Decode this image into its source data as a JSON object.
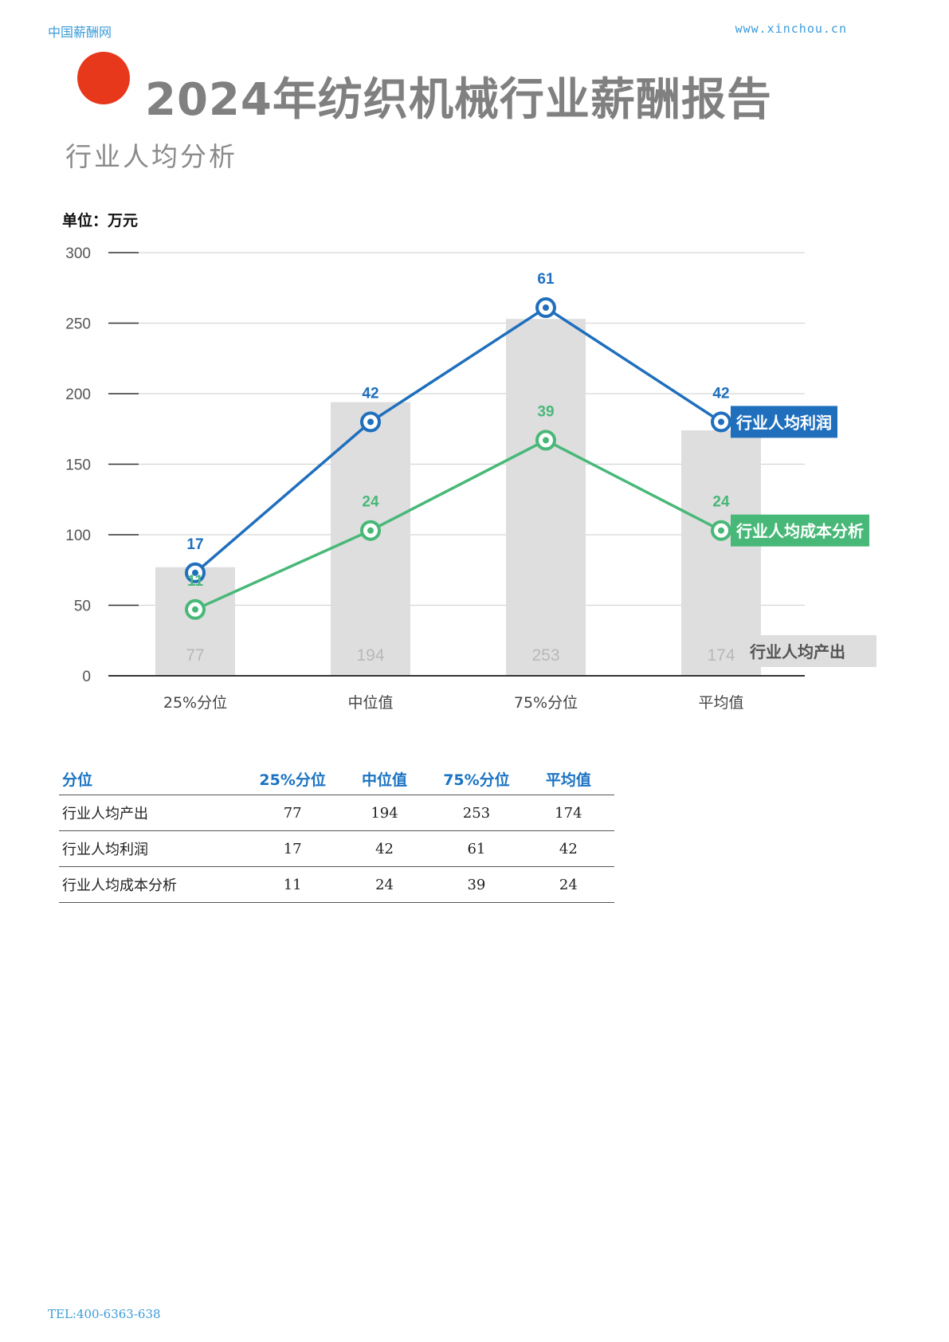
{
  "header": {
    "left": "中国薪酬网",
    "right": "www.xinchou.cn"
  },
  "title": "2024年纺织机械行业薪酬报告",
  "subtitle": "行业人均分析",
  "unit": "单位：万元",
  "colors": {
    "accent_dot": "#e8381b",
    "profit": "#1f6fbd",
    "cost": "#48b878",
    "output_bar": "#dedede"
  },
  "chart_data": {
    "type": "bar",
    "categories": [
      "25%分位",
      "中位值",
      "75%分位",
      "平均值"
    ],
    "ylim": [
      0,
      300
    ],
    "yticks": [
      0,
      50,
      100,
      150,
      200,
      250,
      300
    ],
    "grid": true,
    "bars": {
      "name": "行业人均产出",
      "values": [
        77,
        194,
        253,
        174
      ]
    },
    "lines": [
      {
        "name": "行业人均利润",
        "labels": [
          17,
          42,
          61,
          42
        ],
        "plot_values": [
          73,
          180,
          261,
          180
        ],
        "color": "#1f6fbd"
      },
      {
        "name": "行业人均成本分析",
        "labels": [
          11,
          24,
          39,
          24
        ],
        "plot_values": [
          47,
          103,
          167,
          103
        ],
        "color": "#48b878"
      }
    ]
  },
  "table": {
    "headers": [
      "分位",
      "25%分位",
      "中位值",
      "75%分位",
      "平均值"
    ],
    "rows": [
      [
        "行业人均产出",
        "77",
        "194",
        "253",
        "174"
      ],
      [
        "行业人均利润",
        "17",
        "42",
        "61",
        "42"
      ],
      [
        "行业人均成本分析",
        "11",
        "24",
        "39",
        "24"
      ]
    ]
  },
  "footer": "TEL:400-6363-638"
}
